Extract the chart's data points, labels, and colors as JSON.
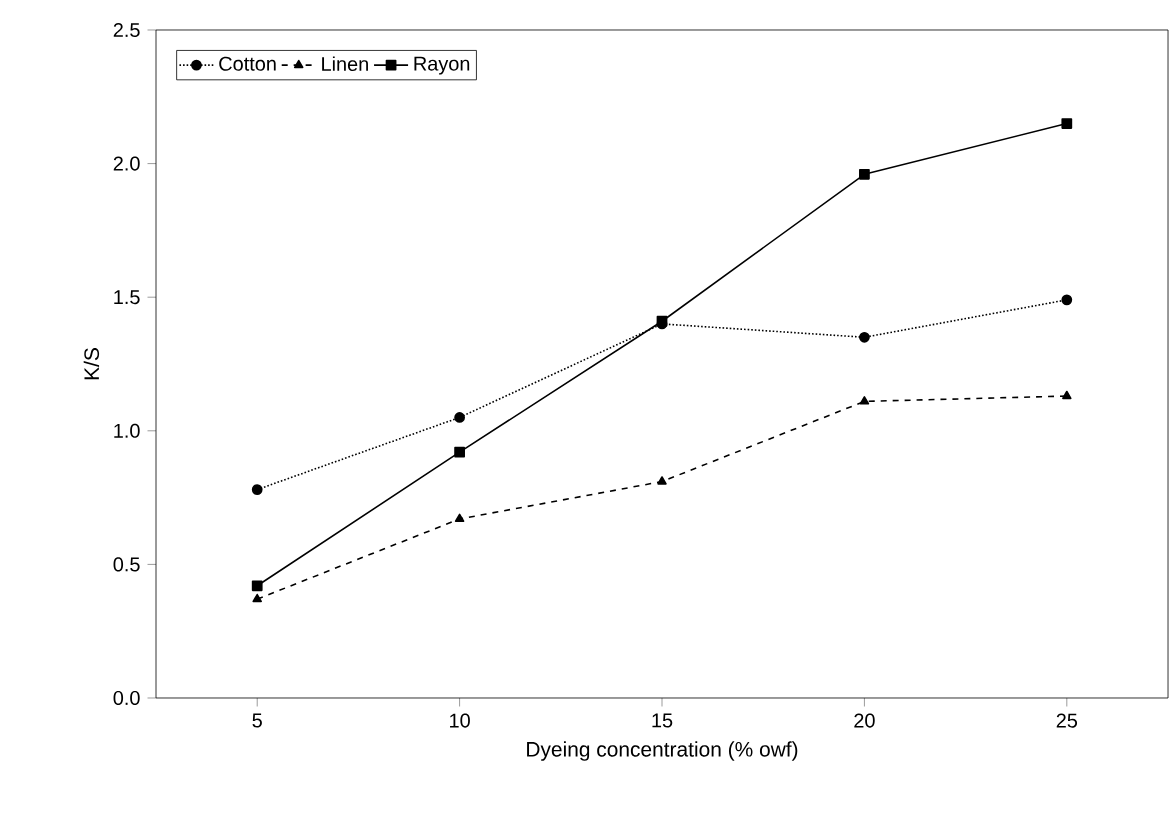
{
  "chart_data": {
    "type": "line",
    "xlabel": "Dyeing concentration (% owf)",
    "ylabel": "K/S",
    "x": [
      5,
      10,
      15,
      20,
      25
    ],
    "xlim": [
      2.5,
      27.5
    ],
    "xticks": [
      5,
      10,
      15,
      20,
      25
    ],
    "ylim": [
      0,
      2.5
    ],
    "yticks": [
      {
        "value": 0,
        "label": "0.0"
      },
      {
        "value": 0.5,
        "label": "0.5"
      },
      {
        "value": 1,
        "label": "1.0"
      },
      {
        "value": 1.5,
        "label": "1.5"
      },
      {
        "value": 2,
        "label": "2.0"
      },
      {
        "value": 2.5,
        "label": "2.5"
      }
    ],
    "legend": "top left",
    "grid": false,
    "series": [
      {
        "name": "Cotton",
        "color": "#000000",
        "marker": "circle",
        "line_style": "dotted",
        "values": [
          0.78,
          1.05,
          1.4,
          1.35,
          1.49
        ]
      },
      {
        "name": "Linen",
        "color": "#000000",
        "marker": "triangle",
        "line_style": "dashed",
        "values": [
          0.37,
          0.67,
          0.81,
          1.11,
          1.13
        ]
      },
      {
        "name": "Rayon",
        "color": "#000000",
        "marker": "square",
        "line_style": "solid",
        "values": [
          0.42,
          0.92,
          1.41,
          1.96,
          2.15
        ]
      }
    ]
  }
}
